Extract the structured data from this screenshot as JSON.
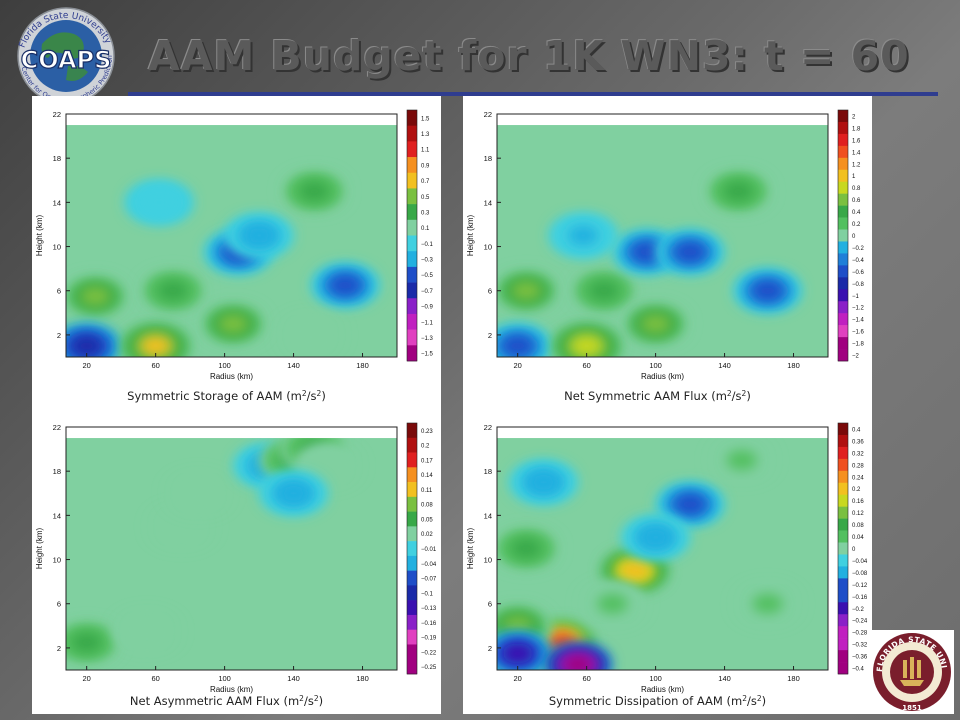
{
  "slide": {
    "title": "AAM Budget for 1K WN3:  t = 60",
    "logo_left_text": "COAPS",
    "logo_left_ring": "Florida State University",
    "logo_left_ring2": "Center for Ocean-Atmospheric Prediction Studies",
    "logo_right_ring": "FLORIDA STATE UNIVERSITY",
    "logo_right_year": "1851",
    "accent_color": "#2f3d8f"
  },
  "chart_data": [
    {
      "type": "heatmap",
      "title": "Symmetric Storage of AAM (m2/s2)",
      "xlabel": "Radius (km)",
      "ylabel": "Height (km)",
      "xticks": [
        20,
        60,
        100,
        140,
        180
      ],
      "yticks": [
        2,
        6,
        10,
        14,
        18,
        22
      ],
      "xlim": [
        8,
        200
      ],
      "ylim": [
        0,
        22
      ],
      "colorbar": [
        "1.5",
        "1.3",
        "1.1",
        "0.9",
        "0.7",
        "0.5",
        "0.3",
        "0.1",
        "-0.1",
        "-0.3",
        "-0.5",
        "-0.7",
        "-0.9",
        "-1.1",
        "-1.3",
        "-1.5"
      ],
      "features": [
        {
          "x": 25,
          "y": 5.5,
          "value": 0.5
        },
        {
          "x": 20,
          "y": 1,
          "value": -0.7
        },
        {
          "x": 70,
          "y": 6,
          "value": 0.3
        },
        {
          "x": 105,
          "y": 3,
          "value": 0.5
        },
        {
          "x": 108,
          "y": 9.5,
          "value": -0.5
        },
        {
          "x": 120,
          "y": 11,
          "value": -0.3
        },
        {
          "x": 152,
          "y": 15,
          "value": 0.3
        },
        {
          "x": 170,
          "y": 6.5,
          "value": -0.5
        },
        {
          "x": 150,
          "y": 2,
          "value": 0.1
        },
        {
          "x": 62,
          "y": 14,
          "value": -0.1
        },
        {
          "x": 60,
          "y": 1,
          "value": 0.7
        }
      ]
    },
    {
      "type": "heatmap",
      "title": "Net Symmetric AAM Flux (m2/s2)",
      "xlabel": "Radius (km)",
      "ylabel": "Height (km)",
      "xticks": [
        20,
        60,
        100,
        140,
        180
      ],
      "yticks": [
        2,
        6,
        10,
        14,
        18,
        22
      ],
      "xlim": [
        8,
        200
      ],
      "ylim": [
        0,
        22
      ],
      "colorbar": [
        "2",
        "1.8",
        "1.6",
        "1.4",
        "1.2",
        "1",
        "0.8",
        "0.6",
        "0.4",
        "0.2",
        "0",
        "-0.2",
        "-0.4",
        "-0.6",
        "-0.8",
        "-1",
        "-1.2",
        "-1.4",
        "-1.6",
        "-1.8",
        "-2"
      ],
      "features": [
        {
          "x": 25,
          "y": 6,
          "value": 0.6
        },
        {
          "x": 20,
          "y": 1,
          "value": -0.6
        },
        {
          "x": 70,
          "y": 6,
          "value": 0.4
        },
        {
          "x": 100,
          "y": 3,
          "value": 0.6
        },
        {
          "x": 95,
          "y": 9.5,
          "value": -0.6
        },
        {
          "x": 120,
          "y": 9.5,
          "value": -0.6
        },
        {
          "x": 148,
          "y": 15,
          "value": 0.4
        },
        {
          "x": 165,
          "y": 6,
          "value": -0.6
        },
        {
          "x": 58,
          "y": 11,
          "value": -0.2
        },
        {
          "x": 60,
          "y": 1,
          "value": 0.8
        }
      ]
    },
    {
      "type": "heatmap",
      "title": "Net Asymmetric AAM Flux (m2/s2)",
      "xlabel": "Radius (km)",
      "ylabel": "Height (km)",
      "xticks": [
        20,
        60,
        100,
        140,
        180
      ],
      "yticks": [
        2,
        6,
        10,
        14,
        18,
        22
      ],
      "xlim": [
        8,
        200
      ],
      "ylim": [
        0,
        22
      ],
      "colorbar": [
        "0.23",
        "0.2",
        "0.17",
        "0.14",
        "0.11",
        "0.08",
        "0.05",
        "0.02",
        "-0.01",
        "-0.04",
        "-0.07",
        "-0.1",
        "-0.13",
        "-0.16",
        "-0.19",
        "-0.22",
        "-0.25"
      ],
      "features": [
        {
          "x": 20,
          "y": 2.5,
          "value": 0.05
        },
        {
          "x": 75,
          "y": 13,
          "value": 0.02
        },
        {
          "x": 85,
          "y": 16,
          "value": 0.02
        },
        {
          "x": 125,
          "y": 18.5,
          "value": -0.04
        },
        {
          "x": 140,
          "y": 19,
          "value": 0.05
        },
        {
          "x": 152,
          "y": 20,
          "value": 0.05
        },
        {
          "x": 160,
          "y": 18.5,
          "value": 0.02
        },
        {
          "x": 140,
          "y": 16,
          "value": -0.04
        },
        {
          "x": 55,
          "y": 3.5,
          "value": 0.02
        }
      ]
    },
    {
      "type": "heatmap",
      "title": "Symmetric Dissipation of AAM (m2/s2)",
      "xlabel": "Radius (km)",
      "ylabel": "Height (km)",
      "xticks": [
        20,
        60,
        100,
        140,
        180
      ],
      "yticks": [
        2,
        6,
        10,
        14,
        18,
        22
      ],
      "xlim": [
        8,
        200
      ],
      "ylim": [
        0,
        22
      ],
      "colorbar": [
        "0.4",
        "0.36",
        "0.32",
        "0.28",
        "0.24",
        "0.2",
        "0.16",
        "0.12",
        "0.08",
        "0.04",
        "0",
        "-0.04",
        "-0.08",
        "-0.12",
        "-0.16",
        "-0.2",
        "-0.24",
        "-0.28",
        "-0.32",
        "-0.36",
        "-0.4"
      ],
      "features": [
        {
          "x": 25,
          "y": 11,
          "value": 0.08
        },
        {
          "x": 88,
          "y": 9,
          "value": 0.2
        },
        {
          "x": 45,
          "y": 2.5,
          "value": 0.28
        },
        {
          "x": 20,
          "y": 4,
          "value": 0.12
        },
        {
          "x": 20,
          "y": 1.5,
          "value": -0.2
        },
        {
          "x": 55,
          "y": 0.5,
          "value": -0.36
        },
        {
          "x": 120,
          "y": 15,
          "value": -0.12
        },
        {
          "x": 100,
          "y": 12,
          "value": -0.08
        },
        {
          "x": 150,
          "y": 19,
          "value": 0.04
        },
        {
          "x": 165,
          "y": 6,
          "value": 0.04
        },
        {
          "x": 35,
          "y": 17,
          "value": -0.08
        },
        {
          "x": 75,
          "y": 6,
          "value": 0.04
        }
      ]
    }
  ]
}
